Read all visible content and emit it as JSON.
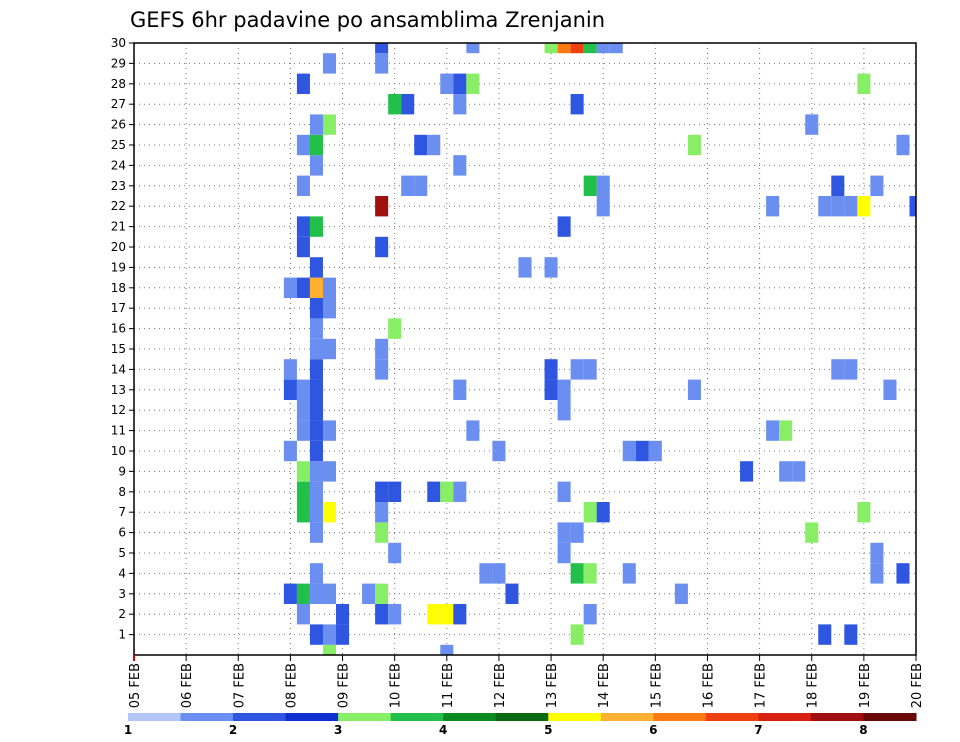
{
  "chart_data": {
    "type": "heatmap",
    "title": "GEFS 6hr padavine po ansamblima Zrenjanin",
    "xlabel": "",
    "ylabel": "",
    "x_tick_labels": [
      "05 FEB",
      "06 FEB",
      "07 FEB",
      "08 FEB",
      "09 FEB",
      "10 FEB",
      "11 FEB",
      "12 FEB",
      "13 FEB",
      "14 FEB",
      "15 FEB",
      "16 FEB",
      "17 FEB",
      "18 FEB",
      "19 FEB",
      "20 FEB"
    ],
    "y_tick_labels": [
      "1",
      "2",
      "3",
      "4",
      "5",
      "6",
      "7",
      "8",
      "9",
      "10",
      "11",
      "12",
      "13",
      "14",
      "15",
      "16",
      "17",
      "18",
      "19",
      "20",
      "21",
      "22",
      "23",
      "24",
      "25",
      "26",
      "27",
      "28",
      "29",
      "30"
    ],
    "x_range_steps": [
      0,
      60
    ],
    "y_range_members": [
      0,
      30
    ],
    "steps_per_day": 4,
    "grid": true,
    "legend": {
      "position": "bottom",
      "boundaries": [
        "1",
        "2",
        "3",
        "4",
        "5",
        "6",
        "7",
        "8",
        "10",
        "12",
        "15",
        "20"
      ],
      "colors": [
        "#b3c7f7",
        "#6a8ff0",
        "#2e56e0",
        "#0f2fd0",
        "#88ee66",
        "#22c04a",
        "#0a8a1f",
        "#0a6a14",
        "#ffff00",
        "#ffb030",
        "#ff7a10",
        "#f04010",
        "#d82010",
        "#a01010",
        "#6a0808"
      ]
    },
    "cells": [
      {
        "step": 15,
        "member": 0,
        "level": 4
      },
      {
        "step": 24,
        "member": 0,
        "level": 1
      },
      {
        "step": 14,
        "member": 1,
        "level": 2
      },
      {
        "step": 15,
        "member": 1,
        "level": 1
      },
      {
        "step": 16,
        "member": 1,
        "level": 2
      },
      {
        "step": 34,
        "member": 1,
        "level": 4
      },
      {
        "step": 53,
        "member": 1,
        "level": 2
      },
      {
        "step": 55,
        "member": 1,
        "level": 2
      },
      {
        "step": 13,
        "member": 2,
        "level": 1
      },
      {
        "step": 16,
        "member": 2,
        "level": 2
      },
      {
        "step": 19,
        "member": 2,
        "level": 2
      },
      {
        "step": 20,
        "member": 2,
        "level": 1
      },
      {
        "step": 23,
        "member": 2,
        "level": 8
      },
      {
        "step": 24,
        "member": 2,
        "level": 8
      },
      {
        "step": 25,
        "member": 2,
        "level": 2
      },
      {
        "step": 35,
        "member": 2,
        "level": 1
      },
      {
        "step": 12,
        "member": 3,
        "level": 2
      },
      {
        "step": 13,
        "member": 3,
        "level": 5
      },
      {
        "step": 14,
        "member": 3,
        "level": 1
      },
      {
        "step": 15,
        "member": 3,
        "level": 1
      },
      {
        "step": 18,
        "member": 3,
        "level": 1
      },
      {
        "step": 19,
        "member": 3,
        "level": 4
      },
      {
        "step": 29,
        "member": 3,
        "level": 2
      },
      {
        "step": 42,
        "member": 3,
        "level": 1
      },
      {
        "step": 14,
        "member": 4,
        "level": 1
      },
      {
        "step": 27,
        "member": 4,
        "level": 1
      },
      {
        "step": 28,
        "member": 4,
        "level": 1
      },
      {
        "step": 34,
        "member": 4,
        "level": 5
      },
      {
        "step": 35,
        "member": 4,
        "level": 4
      },
      {
        "step": 38,
        "member": 4,
        "level": 1
      },
      {
        "step": 57,
        "member": 4,
        "level": 1
      },
      {
        "step": 59,
        "member": 4,
        "level": 2
      },
      {
        "step": 20,
        "member": 5,
        "level": 1
      },
      {
        "step": 33,
        "member": 5,
        "level": 1
      },
      {
        "step": 57,
        "member": 5,
        "level": 1
      },
      {
        "step": 14,
        "member": 6,
        "level": 1
      },
      {
        "step": 19,
        "member": 6,
        "level": 4
      },
      {
        "step": 33,
        "member": 6,
        "level": 1
      },
      {
        "step": 34,
        "member": 6,
        "level": 1
      },
      {
        "step": 52,
        "member": 6,
        "level": 4
      },
      {
        "step": 13,
        "member": 7,
        "level": 5
      },
      {
        "step": 14,
        "member": 7,
        "level": 1
      },
      {
        "step": 15,
        "member": 7,
        "level": 8
      },
      {
        "step": 19,
        "member": 7,
        "level": 1
      },
      {
        "step": 35,
        "member": 7,
        "level": 4
      },
      {
        "step": 36,
        "member": 7,
        "level": 2
      },
      {
        "step": 56,
        "member": 7,
        "level": 4
      },
      {
        "step": 13,
        "member": 8,
        "level": 5
      },
      {
        "step": 14,
        "member": 8,
        "level": 1
      },
      {
        "step": 19,
        "member": 8,
        "level": 2
      },
      {
        "step": 20,
        "member": 8,
        "level": 2
      },
      {
        "step": 23,
        "member": 8,
        "level": 2
      },
      {
        "step": 24,
        "member": 8,
        "level": 4
      },
      {
        "step": 25,
        "member": 8,
        "level": 1
      },
      {
        "step": 33,
        "member": 8,
        "level": 1
      },
      {
        "step": 13,
        "member": 9,
        "level": 4
      },
      {
        "step": 14,
        "member": 9,
        "level": 1
      },
      {
        "step": 15,
        "member": 9,
        "level": 1
      },
      {
        "step": 47,
        "member": 9,
        "level": 2
      },
      {
        "step": 50,
        "member": 9,
        "level": 1
      },
      {
        "step": 51,
        "member": 9,
        "level": 1
      },
      {
        "step": 12,
        "member": 10,
        "level": 1
      },
      {
        "step": 14,
        "member": 10,
        "level": 2
      },
      {
        "step": 28,
        "member": 10,
        "level": 1
      },
      {
        "step": 38,
        "member": 10,
        "level": 1
      },
      {
        "step": 39,
        "member": 10,
        "level": 2
      },
      {
        "step": 40,
        "member": 10,
        "level": 1
      },
      {
        "step": 13,
        "member": 11,
        "level": 1
      },
      {
        "step": 14,
        "member": 11,
        "level": 2
      },
      {
        "step": 15,
        "member": 11,
        "level": 1
      },
      {
        "step": 26,
        "member": 11,
        "level": 1
      },
      {
        "step": 49,
        "member": 11,
        "level": 1
      },
      {
        "step": 50,
        "member": 11,
        "level": 4
      },
      {
        "step": 13,
        "member": 12,
        "level": 1
      },
      {
        "step": 14,
        "member": 12,
        "level": 2
      },
      {
        "step": 33,
        "member": 12,
        "level": 1
      },
      {
        "step": 12,
        "member": 13,
        "level": 2
      },
      {
        "step": 13,
        "member": 13,
        "level": 1
      },
      {
        "step": 14,
        "member": 13,
        "level": 2
      },
      {
        "step": 25,
        "member": 13,
        "level": 1
      },
      {
        "step": 32,
        "member": 13,
        "level": 2
      },
      {
        "step": 33,
        "member": 13,
        "level": 1
      },
      {
        "step": 43,
        "member": 13,
        "level": 1
      },
      {
        "step": 58,
        "member": 13,
        "level": 1
      },
      {
        "step": 12,
        "member": 14,
        "level": 1
      },
      {
        "step": 14,
        "member": 14,
        "level": 2
      },
      {
        "step": 19,
        "member": 14,
        "level": 1
      },
      {
        "step": 32,
        "member": 14,
        "level": 2
      },
      {
        "step": 34,
        "member": 14,
        "level": 1
      },
      {
        "step": 35,
        "member": 14,
        "level": 1
      },
      {
        "step": 54,
        "member": 14,
        "level": 1
      },
      {
        "step": 55,
        "member": 14,
        "level": 1
      },
      {
        "step": 14,
        "member": 15,
        "level": 1
      },
      {
        "step": 15,
        "member": 15,
        "level": 1
      },
      {
        "step": 19,
        "member": 15,
        "level": 1
      },
      {
        "step": 14,
        "member": 16,
        "level": 1
      },
      {
        "step": 20,
        "member": 16,
        "level": 4
      },
      {
        "step": 14,
        "member": 17,
        "level": 2
      },
      {
        "step": 15,
        "member": 17,
        "level": 1
      },
      {
        "step": 12,
        "member": 18,
        "level": 1
      },
      {
        "step": 13,
        "member": 18,
        "level": 2
      },
      {
        "step": 14,
        "member": 18,
        "level": 9
      },
      {
        "step": 15,
        "member": 18,
        "level": 1
      },
      {
        "step": 14,
        "member": 19,
        "level": 2
      },
      {
        "step": 30,
        "member": 19,
        "level": 1
      },
      {
        "step": 32,
        "member": 19,
        "level": 1
      },
      {
        "step": 13,
        "member": 20,
        "level": 2
      },
      {
        "step": 19,
        "member": 20,
        "level": 2
      },
      {
        "step": 13,
        "member": 21,
        "level": 2
      },
      {
        "step": 14,
        "member": 21,
        "level": 5
      },
      {
        "step": 33,
        "member": 21,
        "level": 2
      },
      {
        "step": 19,
        "member": 22,
        "level": 13
      },
      {
        "step": 36,
        "member": 22,
        "level": 1
      },
      {
        "step": 49,
        "member": 22,
        "level": 1
      },
      {
        "step": 53,
        "member": 22,
        "level": 1
      },
      {
        "step": 54,
        "member": 22,
        "level": 1
      },
      {
        "step": 55,
        "member": 22,
        "level": 1
      },
      {
        "step": 56,
        "member": 22,
        "level": 8
      },
      {
        "step": 60,
        "member": 22,
        "level": 2
      },
      {
        "step": 13,
        "member": 23,
        "level": 1
      },
      {
        "step": 21,
        "member": 23,
        "level": 1
      },
      {
        "step": 22,
        "member": 23,
        "level": 1
      },
      {
        "step": 35,
        "member": 23,
        "level": 5
      },
      {
        "step": 36,
        "member": 23,
        "level": 1
      },
      {
        "step": 54,
        "member": 23,
        "level": 2
      },
      {
        "step": 57,
        "member": 23,
        "level": 1
      },
      {
        "step": 14,
        "member": 24,
        "level": 1
      },
      {
        "step": 25,
        "member": 24,
        "level": 1
      },
      {
        "step": 13,
        "member": 25,
        "level": 1
      },
      {
        "step": 14,
        "member": 25,
        "level": 5
      },
      {
        "step": 22,
        "member": 25,
        "level": 2
      },
      {
        "step": 23,
        "member": 25,
        "level": 1
      },
      {
        "step": 43,
        "member": 25,
        "level": 4
      },
      {
        "step": 59,
        "member": 25,
        "level": 1
      },
      {
        "step": 14,
        "member": 26,
        "level": 1
      },
      {
        "step": 15,
        "member": 26,
        "level": 4
      },
      {
        "step": 52,
        "member": 26,
        "level": 1
      },
      {
        "step": 20,
        "member": 27,
        "level": 5
      },
      {
        "step": 21,
        "member": 27,
        "level": 2
      },
      {
        "step": 25,
        "member": 27,
        "level": 1
      },
      {
        "step": 34,
        "member": 27,
        "level": 2
      },
      {
        "step": 13,
        "member": 28,
        "level": 2
      },
      {
        "step": 24,
        "member": 28,
        "level": 1
      },
      {
        "step": 25,
        "member": 28,
        "level": 2
      },
      {
        "step": 26,
        "member": 28,
        "level": 4
      },
      {
        "step": 56,
        "member": 28,
        "level": 4
      },
      {
        "step": 15,
        "member": 29,
        "level": 1
      },
      {
        "step": 19,
        "member": 29,
        "level": 1
      },
      {
        "step": 19,
        "member": 30,
        "level": 2
      },
      {
        "step": 26,
        "member": 30,
        "level": 1
      },
      {
        "step": 32,
        "member": 30,
        "level": 4
      },
      {
        "step": 33,
        "member": 30,
        "level": 10
      },
      {
        "step": 34,
        "member": 30,
        "level": 11
      },
      {
        "step": 35,
        "member": 30,
        "level": 5
      },
      {
        "step": 36,
        "member": 30,
        "level": 1
      },
      {
        "step": 37,
        "member": 30,
        "level": 1
      }
    ]
  }
}
